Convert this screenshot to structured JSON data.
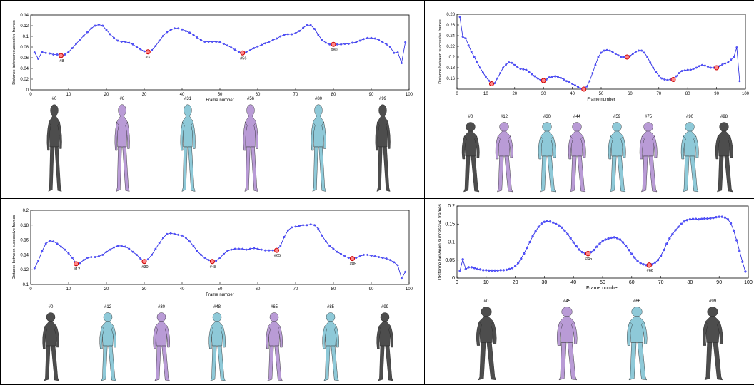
{
  "colors": {
    "line": "#2222dd",
    "marker": "#5555ff",
    "highlight": "#cc0000",
    "grey": "#4d4d4d",
    "lavender": "#b99bd6",
    "cyan": "#8ec9d8"
  },
  "chart_data": [
    {
      "type": "line",
      "xlabel": "Frame number",
      "ylabel": "Distance between successive frames",
      "xlim": [
        0,
        100
      ],
      "ylim": [
        0,
        0.14
      ],
      "xticks": [
        "0",
        "10",
        "20",
        "30",
        "40",
        "50",
        "60",
        "70",
        "80",
        "90",
        "100"
      ],
      "yticks": [
        "0",
        "0.02",
        "0.04",
        "0.06",
        "0.08",
        "0.1",
        "0.12",
        "0.14"
      ],
      "highlights": [
        {
          "x": 8,
          "y": 0.064,
          "label": "#8"
        },
        {
          "x": 31,
          "y": 0.071,
          "label": "#31"
        },
        {
          "x": 56,
          "y": 0.069,
          "label": "#56"
        },
        {
          "x": 80,
          "y": 0.085,
          "label": "#80"
        }
      ],
      "x": [
        1,
        2,
        3,
        4,
        5,
        6,
        7,
        8,
        9,
        10,
        11,
        12,
        13,
        14,
        15,
        16,
        17,
        18,
        19,
        20,
        21,
        22,
        23,
        24,
        25,
        26,
        27,
        28,
        29,
        30,
        31,
        32,
        33,
        34,
        35,
        36,
        37,
        38,
        39,
        40,
        41,
        42,
        43,
        44,
        45,
        46,
        47,
        48,
        49,
        50,
        51,
        52,
        53,
        54,
        55,
        56,
        57,
        58,
        59,
        60,
        61,
        62,
        63,
        64,
        65,
        66,
        67,
        68,
        69,
        70,
        71,
        72,
        73,
        74,
        75,
        76,
        77,
        78,
        79,
        80,
        81,
        82,
        83,
        84,
        85,
        86,
        87,
        88,
        89,
        90,
        91,
        92,
        93,
        94,
        95,
        96,
        97,
        98,
        99
      ],
      "y": [
        0.07,
        0.058,
        0.071,
        0.069,
        0.068,
        0.066,
        0.066,
        0.064,
        0.066,
        0.071,
        0.078,
        0.086,
        0.094,
        0.101,
        0.108,
        0.115,
        0.12,
        0.122,
        0.12,
        0.112,
        0.104,
        0.097,
        0.092,
        0.09,
        0.09,
        0.088,
        0.085,
        0.08,
        0.076,
        0.072,
        0.071,
        0.074,
        0.082,
        0.092,
        0.101,
        0.108,
        0.112,
        0.115,
        0.115,
        0.113,
        0.11,
        0.107,
        0.103,
        0.098,
        0.093,
        0.09,
        0.09,
        0.09,
        0.09,
        0.089,
        0.086,
        0.083,
        0.079,
        0.075,
        0.071,
        0.069,
        0.071,
        0.074,
        0.078,
        0.081,
        0.084,
        0.087,
        0.09,
        0.093,
        0.096,
        0.1,
        0.103,
        0.104,
        0.104,
        0.106,
        0.11,
        0.116,
        0.121,
        0.121,
        0.114,
        0.103,
        0.093,
        0.088,
        0.085,
        0.085,
        0.085,
        0.085,
        0.086,
        0.086,
        0.088,
        0.089,
        0.092,
        0.095,
        0.097,
        0.097,
        0.096,
        0.093,
        0.089,
        0.085,
        0.08,
        0.069,
        0.07,
        0.05,
        0.089
      ]
    },
    {
      "type": "line",
      "xlabel": "Frame number",
      "ylabel": "Distance between successive frames",
      "xlim": [
        0,
        100
      ],
      "ylim": [
        0.14,
        0.28
      ],
      "xticks": [
        "0",
        "10",
        "20",
        "30",
        "40",
        "50",
        "60",
        "70",
        "80",
        "90",
        "100"
      ],
      "yticks": [
        "0.16",
        "0.18",
        "0.2",
        "0.22",
        "0.24",
        "0.26",
        "0.28"
      ],
      "highlights": [
        {
          "x": 12,
          "y": 0.15,
          "label": ""
        },
        {
          "x": 30,
          "y": 0.156,
          "label": ""
        },
        {
          "x": 44,
          "y": 0.14,
          "label": ""
        },
        {
          "x": 59,
          "y": 0.2,
          "label": ""
        },
        {
          "x": 75,
          "y": 0.158,
          "label": ""
        },
        {
          "x": 90,
          "y": 0.18,
          "label": ""
        }
      ],
      "x": [
        1,
        2,
        3,
        4,
        5,
        6,
        7,
        8,
        9,
        10,
        11,
        12,
        13,
        14,
        15,
        16,
        17,
        18,
        19,
        20,
        21,
        22,
        23,
        24,
        25,
        26,
        27,
        28,
        29,
        30,
        31,
        32,
        33,
        34,
        35,
        36,
        37,
        38,
        39,
        40,
        41,
        42,
        43,
        44,
        45,
        46,
        47,
        48,
        49,
        50,
        51,
        52,
        53,
        54,
        55,
        56,
        57,
        58,
        59,
        60,
        61,
        62,
        63,
        64,
        65,
        66,
        67,
        68,
        69,
        70,
        71,
        72,
        73,
        74,
        75,
        76,
        77,
        78,
        79,
        80,
        81,
        82,
        83,
        84,
        85,
        86,
        87,
        88,
        89,
        90,
        91,
        92,
        93,
        94,
        95,
        96,
        97,
        98
      ],
      "y": [
        0.275,
        0.238,
        0.235,
        0.222,
        0.21,
        0.2,
        0.19,
        0.18,
        0.171,
        0.163,
        0.156,
        0.15,
        0.151,
        0.16,
        0.17,
        0.18,
        0.186,
        0.19,
        0.189,
        0.185,
        0.181,
        0.178,
        0.177,
        0.176,
        0.172,
        0.168,
        0.164,
        0.16,
        0.157,
        0.156,
        0.158,
        0.162,
        0.163,
        0.164,
        0.163,
        0.161,
        0.158,
        0.155,
        0.153,
        0.15,
        0.147,
        0.144,
        0.141,
        0.14,
        0.145,
        0.155,
        0.17,
        0.185,
        0.2,
        0.208,
        0.212,
        0.213,
        0.212,
        0.209,
        0.206,
        0.203,
        0.2,
        0.2,
        0.2,
        0.202,
        0.206,
        0.21,
        0.212,
        0.212,
        0.208,
        0.2,
        0.19,
        0.18,
        0.172,
        0.165,
        0.16,
        0.158,
        0.157,
        0.158,
        0.158,
        0.164,
        0.17,
        0.174,
        0.175,
        0.176,
        0.176,
        0.178,
        0.18,
        0.183,
        0.185,
        0.184,
        0.182,
        0.18,
        0.18,
        0.18,
        0.183,
        0.186,
        0.188,
        0.19,
        0.195,
        0.2,
        0.218,
        0.155
      ]
    },
    {
      "type": "line",
      "xlabel": "Frame number",
      "ylabel": "Distance between successive frames",
      "xlim": [
        0,
        100
      ],
      "ylim": [
        0.1,
        0.2
      ],
      "xticks": [
        "0",
        "10",
        "20",
        "30",
        "40",
        "50",
        "60",
        "70",
        "80",
        "90",
        "100"
      ],
      "yticks": [
        "0.1",
        "0.12",
        "0.14",
        "0.16",
        "0.18",
        "0.2"
      ],
      "highlights": [
        {
          "x": 12,
          "y": 0.128,
          "label": "#12"
        },
        {
          "x": 30,
          "y": 0.131,
          "label": "#30"
        },
        {
          "x": 48,
          "y": 0.131,
          "label": "#48"
        },
        {
          "x": 65,
          "y": 0.146,
          "label": "#65"
        },
        {
          "x": 85,
          "y": 0.135,
          "label": "#85"
        }
      ],
      "x": [
        1,
        2,
        3,
        4,
        5,
        6,
        7,
        8,
        9,
        10,
        11,
        12,
        13,
        14,
        15,
        16,
        17,
        18,
        19,
        20,
        21,
        22,
        23,
        24,
        25,
        26,
        27,
        28,
        29,
        30,
        31,
        32,
        33,
        34,
        35,
        36,
        37,
        38,
        39,
        40,
        41,
        42,
        43,
        44,
        45,
        46,
        47,
        48,
        49,
        50,
        51,
        52,
        53,
        54,
        55,
        56,
        57,
        58,
        59,
        60,
        61,
        62,
        63,
        64,
        65,
        66,
        67,
        68,
        69,
        70,
        71,
        72,
        73,
        74,
        75,
        76,
        77,
        78,
        79,
        80,
        81,
        82,
        83,
        84,
        85,
        86,
        87,
        88,
        89,
        90,
        91,
        92,
        93,
        94,
        95,
        96,
        97,
        98,
        99
      ],
      "y": [
        0.122,
        0.132,
        0.145,
        0.155,
        0.159,
        0.158,
        0.155,
        0.151,
        0.147,
        0.142,
        0.136,
        0.128,
        0.129,
        0.133,
        0.136,
        0.137,
        0.137,
        0.138,
        0.14,
        0.144,
        0.147,
        0.15,
        0.152,
        0.152,
        0.151,
        0.148,
        0.144,
        0.14,
        0.135,
        0.131,
        0.134,
        0.14,
        0.148,
        0.156,
        0.163,
        0.168,
        0.169,
        0.168,
        0.167,
        0.166,
        0.163,
        0.158,
        0.152,
        0.145,
        0.14,
        0.136,
        0.133,
        0.131,
        0.132,
        0.136,
        0.141,
        0.145,
        0.147,
        0.148,
        0.148,
        0.148,
        0.147,
        0.148,
        0.149,
        0.148,
        0.147,
        0.146,
        0.146,
        0.146,
        0.146,
        0.152,
        0.164,
        0.173,
        0.177,
        0.178,
        0.179,
        0.18,
        0.18,
        0.181,
        0.18,
        0.175,
        0.166,
        0.158,
        0.152,
        0.148,
        0.144,
        0.141,
        0.138,
        0.136,
        0.135,
        0.136,
        0.138,
        0.14,
        0.14,
        0.139,
        0.138,
        0.137,
        0.136,
        0.135,
        0.133,
        0.13,
        0.126,
        0.108,
        0.117
      ]
    },
    {
      "type": "line",
      "xlabel": "Frame number",
      "ylabel": "Distance between successive frames",
      "xlim": [
        0,
        100
      ],
      "ylim": [
        0,
        0.2
      ],
      "xticks": [
        "0",
        "10",
        "20",
        "30",
        "40",
        "50",
        "60",
        "70",
        "80",
        "90",
        "100"
      ],
      "yticks": [
        "0",
        "0.05",
        "0.1",
        "0.15",
        "0.2"
      ],
      "highlights": [
        {
          "x": 45,
          "y": 0.068,
          "label": "#45"
        },
        {
          "x": 66,
          "y": 0.036,
          "label": "#66"
        }
      ],
      "x": [
        1,
        2,
        3,
        4,
        5,
        6,
        7,
        8,
        9,
        10,
        11,
        12,
        13,
        14,
        15,
        16,
        17,
        18,
        19,
        20,
        21,
        22,
        23,
        24,
        25,
        26,
        27,
        28,
        29,
        30,
        31,
        32,
        33,
        34,
        35,
        36,
        37,
        38,
        39,
        40,
        41,
        42,
        43,
        44,
        45,
        46,
        47,
        48,
        49,
        50,
        51,
        52,
        53,
        54,
        55,
        56,
        57,
        58,
        59,
        60,
        61,
        62,
        63,
        64,
        65,
        66,
        67,
        68,
        69,
        70,
        71,
        72,
        73,
        74,
        75,
        76,
        77,
        78,
        79,
        80,
        81,
        82,
        83,
        84,
        85,
        86,
        87,
        88,
        89,
        90,
        91,
        92,
        93,
        94,
        95,
        96,
        97,
        98,
        99
      ],
      "y": [
        0.02,
        0.052,
        0.025,
        0.03,
        0.03,
        0.028,
        0.025,
        0.024,
        0.022,
        0.022,
        0.021,
        0.021,
        0.021,
        0.021,
        0.022,
        0.022,
        0.023,
        0.025,
        0.028,
        0.033,
        0.042,
        0.054,
        0.068,
        0.084,
        0.1,
        0.116,
        0.13,
        0.142,
        0.151,
        0.156,
        0.158,
        0.157,
        0.154,
        0.15,
        0.146,
        0.14,
        0.132,
        0.122,
        0.111,
        0.099,
        0.088,
        0.079,
        0.072,
        0.068,
        0.068,
        0.072,
        0.078,
        0.087,
        0.095,
        0.102,
        0.107,
        0.11,
        0.112,
        0.113,
        0.111,
        0.107,
        0.099,
        0.089,
        0.078,
        0.067,
        0.057,
        0.048,
        0.042,
        0.038,
        0.036,
        0.036,
        0.038,
        0.043,
        0.05,
        0.062,
        0.078,
        0.095,
        0.11,
        0.122,
        0.133,
        0.142,
        0.15,
        0.157,
        0.161,
        0.163,
        0.164,
        0.164,
        0.163,
        0.164,
        0.165,
        0.165,
        0.166,
        0.167,
        0.169,
        0.17,
        0.17,
        0.168,
        0.163,
        0.152,
        0.132,
        0.105,
        0.075,
        0.045,
        0.018
      ]
    }
  ],
  "figures": [
    {
      "labels": [
        "#0",
        "#8",
        "#31",
        "#56",
        "#80",
        "#99"
      ],
      "colors": [
        "grey",
        "lavender",
        "cyan",
        "lavender",
        "cyan",
        "grey"
      ]
    },
    {
      "labels": [
        "#0",
        "#12",
        "#30",
        "#44",
        "#59",
        "#75",
        "#90",
        "#98"
      ],
      "colors": [
        "grey",
        "lavender",
        "cyan",
        "lavender",
        "cyan",
        "lavender",
        "cyan",
        "grey"
      ]
    },
    {
      "labels": [
        "#0",
        "#12",
        "#30",
        "#48",
        "#65",
        "#85",
        "#99"
      ],
      "colors": [
        "grey",
        "cyan",
        "lavender",
        "cyan",
        "lavender",
        "cyan",
        "grey"
      ]
    },
    {
      "labels": [
        "#0",
        "#45",
        "#66",
        "#99"
      ],
      "colors": [
        "grey",
        "lavender",
        "cyan",
        "grey"
      ]
    }
  ]
}
